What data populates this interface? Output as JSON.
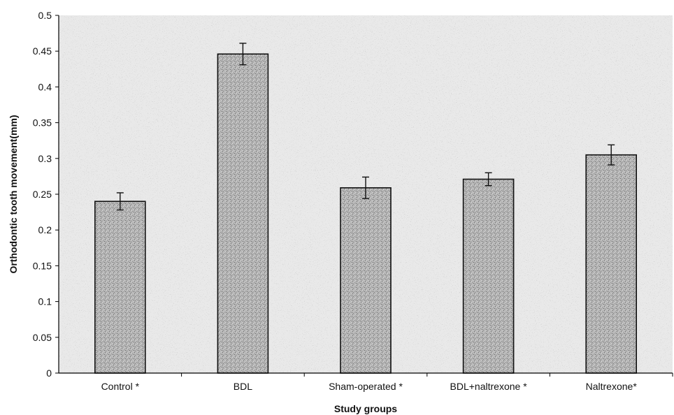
{
  "chart_data": {
    "type": "bar",
    "title": "",
    "xlabel": "Study groups",
    "ylabel": "Orthodontic tooth movement(mm)",
    "categories": [
      "Control *",
      "BDL",
      "Sham-operated *",
      "BDL+naltrexone *",
      "Naltrexone*"
    ],
    "values": [
      0.24,
      0.446,
      0.259,
      0.271,
      0.305
    ],
    "errors": [
      0.012,
      0.015,
      0.015,
      0.009,
      0.014
    ],
    "ylim": [
      0,
      0.5
    ],
    "yticks": [
      "0",
      "0.05",
      "0.1",
      "0.15",
      "0.2",
      "0.25",
      "0.3",
      "0.35",
      "0.4",
      "0.45",
      "0.5"
    ],
    "grid": false,
    "legend": "none",
    "colors": {
      "bar_fill": "#bdbdbd",
      "bar_stroke": "#111111",
      "plot_background": "#e9e9e9",
      "axis": "#000000"
    }
  }
}
